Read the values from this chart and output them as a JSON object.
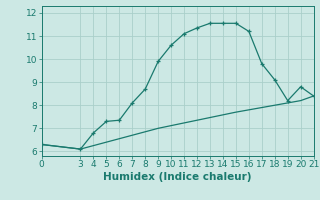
{
  "line1_x": [
    0,
    3,
    4,
    5,
    6,
    7,
    8,
    9,
    10,
    11,
    12,
    13,
    14,
    15,
    16,
    17,
    18,
    19,
    20,
    21
  ],
  "line1_y": [
    6.3,
    6.1,
    6.8,
    7.3,
    7.35,
    8.1,
    8.7,
    9.9,
    10.6,
    11.1,
    11.35,
    11.55,
    11.55,
    11.55,
    11.2,
    9.8,
    9.1,
    8.2,
    8.8,
    8.4
  ],
  "line2_x": [
    0,
    3,
    9,
    15,
    19,
    20,
    21
  ],
  "line2_y": [
    6.3,
    6.1,
    7.0,
    7.7,
    8.1,
    8.2,
    8.4
  ],
  "line_color": "#1a7a6e",
  "bg_color": "#cce8e4",
  "grid_color": "#aacfca",
  "xlabel": "Humidex (Indice chaleur)",
  "xlim": [
    0,
    21
  ],
  "ylim": [
    5.8,
    12.3
  ],
  "xticks": [
    0,
    3,
    4,
    5,
    6,
    7,
    8,
    9,
    10,
    11,
    12,
    13,
    14,
    15,
    16,
    17,
    18,
    19,
    20,
    21
  ],
  "yticks": [
    6,
    7,
    8,
    9,
    10,
    11,
    12
  ],
  "tick_fontsize": 6.5,
  "xlabel_fontsize": 7.5
}
